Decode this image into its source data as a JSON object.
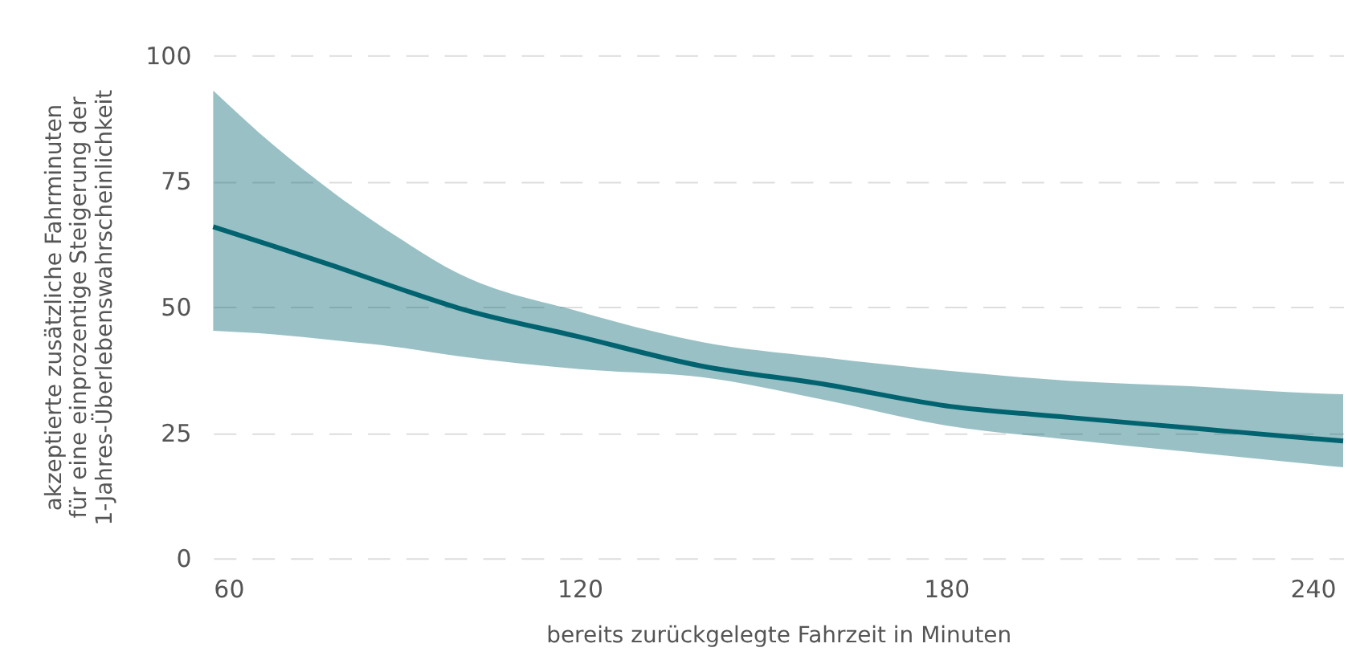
{
  "chart_data": {
    "type": "line",
    "xlabel": "bereits zurückgelegte Fahrzeit in Minuten",
    "ylabel": "akzeptierte zusätzliche Fahrminuten\nfür eine einprozentige Steigerung der\n1-Jahres-Überlebenswahrscheinlichkeit",
    "x": [
      60,
      70,
      80,
      90,
      100,
      120,
      140,
      160,
      180,
      200,
      220,
      240,
      245
    ],
    "series": [
      {
        "color": "#00636f",
        "values": [
          65.9,
          62,
          58,
          53.8,
          49.8,
          44,
          38.2,
          34.6,
          30.3,
          28,
          25.9,
          23.8,
          23.3
        ],
        "lower": [
          45.2,
          44.5,
          43.3,
          42,
          40.2,
          37.6,
          36,
          31.5,
          26.4,
          23.6,
          21.1,
          18.7,
          18.1
        ],
        "upper": [
          93,
          82,
          72.4,
          64,
          56.7,
          49,
          43,
          39.9,
          37.3,
          35.3,
          34.2,
          32.8,
          32.6
        ]
      }
    ],
    "xlim": [
      60,
      245
    ],
    "ylim": [
      0,
      100
    ],
    "xticks": [
      60,
      120,
      180,
      240
    ],
    "yticks": [
      0,
      25,
      50,
      75,
      100
    ],
    "grid": "y",
    "marker": "none",
    "line_style": "solid"
  }
}
